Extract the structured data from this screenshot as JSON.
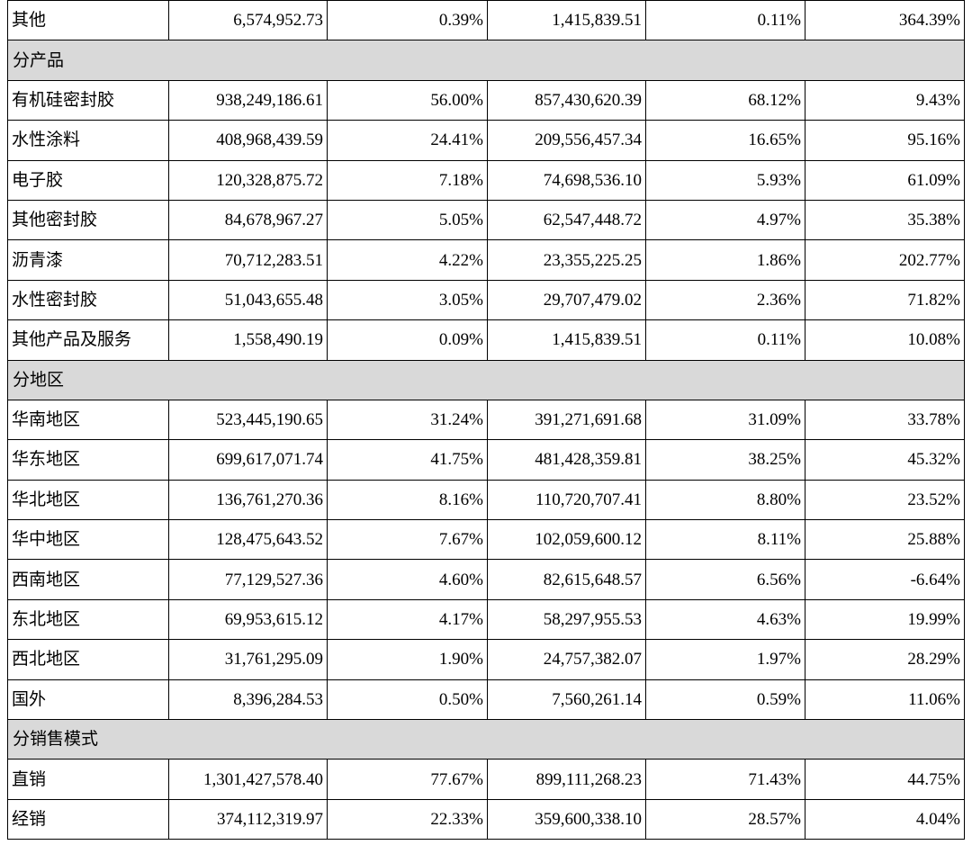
{
  "rows": [
    {
      "type": "data",
      "label": "其他",
      "values": [
        "6,574,952.73",
        "0.39%",
        "1,415,839.51",
        "0.11%",
        "364.39%"
      ]
    },
    {
      "type": "section",
      "label": "分产品"
    },
    {
      "type": "data",
      "label": "有机硅密封胶",
      "values": [
        "938,249,186.61",
        "56.00%",
        "857,430,620.39",
        "68.12%",
        "9.43%"
      ]
    },
    {
      "type": "data",
      "label": "水性涂料",
      "values": [
        "408,968,439.59",
        "24.41%",
        "209,556,457.34",
        "16.65%",
        "95.16%"
      ]
    },
    {
      "type": "data",
      "label": "电子胶",
      "values": [
        "120,328,875.72",
        "7.18%",
        "74,698,536.10",
        "5.93%",
        "61.09%"
      ]
    },
    {
      "type": "data",
      "label": "其他密封胶",
      "values": [
        "84,678,967.27",
        "5.05%",
        "62,547,448.72",
        "4.97%",
        "35.38%"
      ]
    },
    {
      "type": "data",
      "label": "沥青漆",
      "values": [
        "70,712,283.51",
        "4.22%",
        "23,355,225.25",
        "1.86%",
        "202.77%"
      ]
    },
    {
      "type": "data",
      "label": "水性密封胶",
      "values": [
        "51,043,655.48",
        "3.05%",
        "29,707,479.02",
        "2.36%",
        "71.82%"
      ]
    },
    {
      "type": "data",
      "label": "其他产品及服务",
      "values": [
        "1,558,490.19",
        "0.09%",
        "1,415,839.51",
        "0.11%",
        "10.08%"
      ]
    },
    {
      "type": "section",
      "label": "分地区"
    },
    {
      "type": "data",
      "label": "华南地区",
      "values": [
        "523,445,190.65",
        "31.24%",
        "391,271,691.68",
        "31.09%",
        "33.78%"
      ]
    },
    {
      "type": "data",
      "label": "华东地区",
      "values": [
        "699,617,071.74",
        "41.75%",
        "481,428,359.81",
        "38.25%",
        "45.32%"
      ]
    },
    {
      "type": "data",
      "label": "华北地区",
      "values": [
        "136,761,270.36",
        "8.16%",
        "110,720,707.41",
        "8.80%",
        "23.52%"
      ]
    },
    {
      "type": "data",
      "label": "华中地区",
      "values": [
        "128,475,643.52",
        "7.67%",
        "102,059,600.12",
        "8.11%",
        "25.88%"
      ]
    },
    {
      "type": "data",
      "label": "西南地区",
      "values": [
        "77,129,527.36",
        "4.60%",
        "82,615,648.57",
        "6.56%",
        "-6.64%"
      ]
    },
    {
      "type": "data",
      "label": "东北地区",
      "values": [
        "69,953,615.12",
        "4.17%",
        "58,297,955.53",
        "4.63%",
        "19.99%"
      ]
    },
    {
      "type": "data",
      "label": "西北地区",
      "values": [
        "31,761,295.09",
        "1.90%",
        "24,757,382.07",
        "1.97%",
        "28.29%"
      ]
    },
    {
      "type": "data",
      "label": "国外",
      "values": [
        "8,396,284.53",
        "0.50%",
        "7,560,261.14",
        "0.59%",
        "11.06%"
      ]
    },
    {
      "type": "section",
      "label": "分销售模式"
    },
    {
      "type": "data",
      "label": "直销",
      "values": [
        "1,301,427,578.40",
        "77.67%",
        "899,111,268.23",
        "71.43%",
        "44.75%"
      ]
    },
    {
      "type": "data",
      "label": "经销",
      "values": [
        "374,112,319.97",
        "22.33%",
        "359,600,338.10",
        "28.57%",
        "4.04%"
      ]
    }
  ],
  "colors": {
    "section_bg": "#d9d9d9",
    "border": "#000000",
    "text": "#000000"
  }
}
